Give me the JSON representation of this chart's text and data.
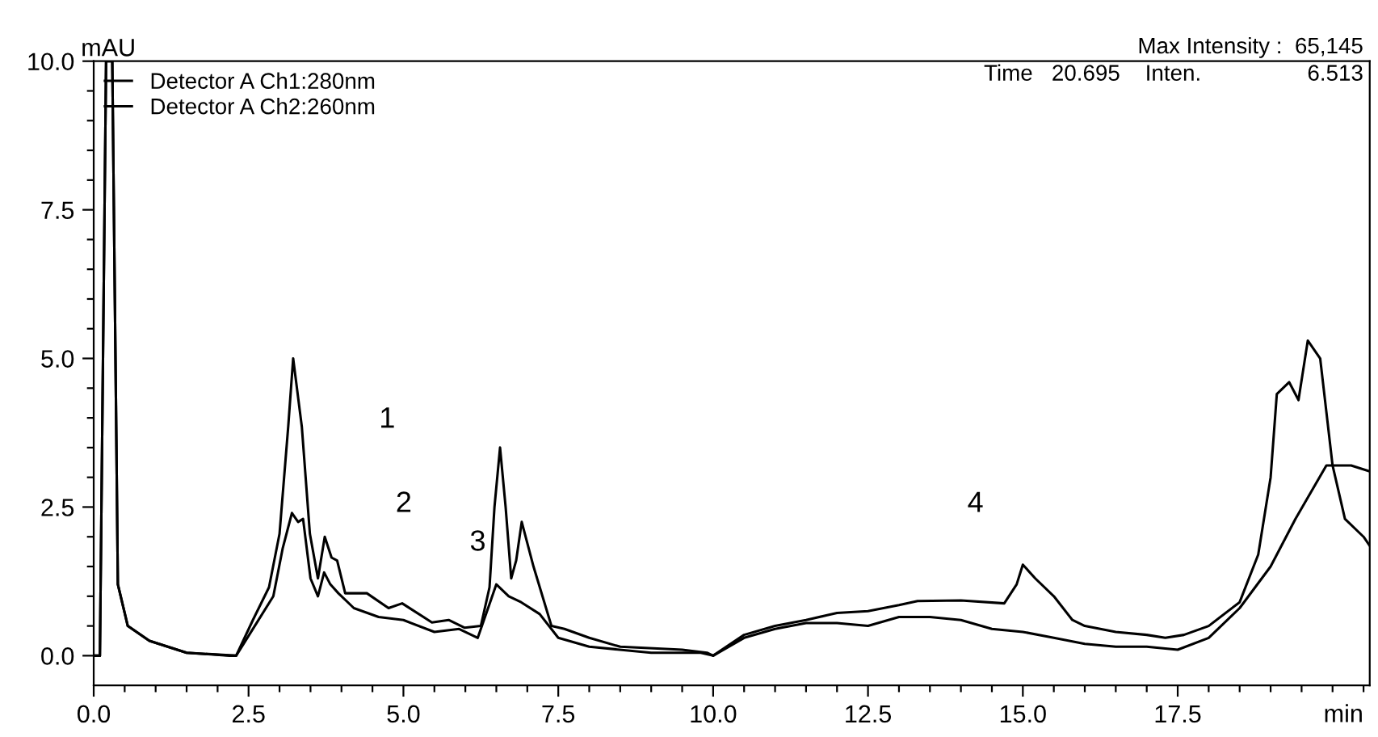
{
  "chart_data": {
    "type": "line",
    "xlabel": "min",
    "ylabel": "mAU",
    "xlim": [
      0,
      20.6
    ],
    "ylim": [
      -0.5,
      10.0
    ],
    "xticks": [
      {
        "value": 0,
        "label": "0.0"
      },
      {
        "value": 0.5,
        "label": null
      },
      {
        "value": 1,
        "label": null
      },
      {
        "value": 1.5,
        "label": null
      },
      {
        "value": 2,
        "label": null
      },
      {
        "value": 2.5,
        "label": "2.5"
      },
      {
        "value": 3,
        "label": null
      },
      {
        "value": 3.5,
        "label": null
      },
      {
        "value": 4,
        "label": null
      },
      {
        "value": 4.5,
        "label": null
      },
      {
        "value": 5,
        "label": "5.0"
      },
      {
        "value": 5.5,
        "label": null
      },
      {
        "value": 6,
        "label": null
      },
      {
        "value": 6.5,
        "label": null
      },
      {
        "value": 7,
        "label": null
      },
      {
        "value": 7.5,
        "label": "7.5"
      },
      {
        "value": 8,
        "label": null
      },
      {
        "value": 8.5,
        "label": null
      },
      {
        "value": 9,
        "label": null
      },
      {
        "value": 9.5,
        "label": null
      },
      {
        "value": 10,
        "label": "10.0"
      },
      {
        "value": 10.5,
        "label": null
      },
      {
        "value": 11,
        "label": null
      },
      {
        "value": 11.5,
        "label": null
      },
      {
        "value": 12,
        "label": null
      },
      {
        "value": 12.5,
        "label": "12.5"
      },
      {
        "value": 13,
        "label": null
      },
      {
        "value": 13.5,
        "label": null
      },
      {
        "value": 14,
        "label": null
      },
      {
        "value": 14.5,
        "label": null
      },
      {
        "value": 15,
        "label": "15.0"
      },
      {
        "value": 15.5,
        "label": null
      },
      {
        "value": 16,
        "label": null
      },
      {
        "value": 16.5,
        "label": null
      },
      {
        "value": 17,
        "label": null
      },
      {
        "value": 17.5,
        "label": "17.5"
      },
      {
        "value": 18,
        "label": null
      },
      {
        "value": 18.5,
        "label": null
      },
      {
        "value": 19,
        "label": null
      },
      {
        "value": 19.5,
        "label": null
      },
      {
        "value": 20,
        "label": null
      },
      {
        "value": 20.5,
        "label": null
      }
    ],
    "yticks": [
      {
        "value": 0,
        "label": "0.0"
      },
      {
        "value": 0.5,
        "label": null
      },
      {
        "value": 1,
        "label": null
      },
      {
        "value": 1.5,
        "label": null
      },
      {
        "value": 2,
        "label": null
      },
      {
        "value": 2.5,
        "label": "2.5"
      },
      {
        "value": 3,
        "label": null
      },
      {
        "value": 3.5,
        "label": null
      },
      {
        "value": 4,
        "label": null
      },
      {
        "value": 4.5,
        "label": null
      },
      {
        "value": 5,
        "label": "5.0"
      },
      {
        "value": 5.5,
        "label": null
      },
      {
        "value": 6,
        "label": null
      },
      {
        "value": 6.5,
        "label": null
      },
      {
        "value": 7,
        "label": null
      },
      {
        "value": 7.5,
        "label": "7.5"
      },
      {
        "value": 8,
        "label": null
      },
      {
        "value": 8.5,
        "label": null
      },
      {
        "value": 9,
        "label": null
      },
      {
        "value": 9.5,
        "label": null
      },
      {
        "value": 10,
        "label": "10.0"
      }
    ],
    "grid": false,
    "legend": "top left",
    "marker": "none",
    "line_style": "solid",
    "series": [
      {
        "name": "Detector A Ch1:280nm",
        "color": "#000000",
        "x": [
          0,
          0.1,
          0.15,
          0.2,
          0.3,
          0.36,
          0.39,
          0.55,
          0.9,
          1.5,
          2.2,
          2.3,
          2.57,
          2.83,
          3.0,
          3.14,
          3.22,
          3.36,
          3.49,
          3.62,
          3.73,
          3.84,
          3.93,
          4.06,
          4.41,
          4.76,
          4.98,
          5.46,
          5.73,
          5.99,
          6.25,
          6.39,
          6.47,
          6.56,
          6.65,
          6.74,
          6.82,
          6.91,
          7.1,
          7.39,
          7.6,
          8.0,
          8.5,
          9.5,
          9.9,
          10.0,
          10.5,
          11.0,
          11.5,
          12.0,
          12.5,
          13.0,
          13.3,
          14.0,
          14.7,
          14.9,
          15.0,
          15.2,
          15.5,
          15.8,
          16.0,
          16.5,
          17.0,
          17.3,
          17.6,
          18.0,
          18.5,
          18.8,
          19.0,
          19.1,
          19.3,
          19.45,
          19.6,
          19.8,
          20.0,
          20.2,
          20.5,
          20.6
        ],
        "values": [
          0,
          0,
          5.0,
          10.0,
          10.0,
          4.2,
          1.2,
          0.5,
          0.25,
          0.05,
          0,
          0,
          0.6,
          1.15,
          2.05,
          3.85,
          5.0,
          3.85,
          2.05,
          1.3,
          2.0,
          1.65,
          1.6,
          1.05,
          1.05,
          0.8,
          0.88,
          0.56,
          0.6,
          0.47,
          0.5,
          1.15,
          2.5,
          3.5,
          2.5,
          1.3,
          1.6,
          2.25,
          1.5,
          0.5,
          0.45,
          0.3,
          0.15,
          0.1,
          0.05,
          0,
          0.35,
          0.5,
          0.6,
          0.72,
          0.75,
          0.85,
          0.92,
          0.93,
          0.88,
          1.2,
          1.53,
          1.3,
          1.0,
          0.6,
          0.5,
          0.4,
          0.35,
          0.3,
          0.35,
          0.5,
          0.9,
          1.7,
          3.0,
          4.4,
          4.6,
          4.3,
          5.3,
          5.0,
          3.2,
          2.3,
          2.0,
          1.85
        ]
      },
      {
        "name": "Detector A Ch2:260nm",
        "color": "#000000",
        "x": [
          0,
          0.1,
          0.15,
          0.2,
          0.3,
          0.36,
          0.39,
          0.55,
          0.9,
          1.5,
          2.3,
          2.6,
          2.9,
          3.05,
          3.2,
          3.3,
          3.38,
          3.5,
          3.62,
          3.72,
          3.82,
          3.95,
          4.2,
          4.6,
          5.0,
          5.5,
          5.9,
          6.2,
          6.4,
          6.5,
          6.7,
          6.9,
          7.2,
          7.5,
          8.0,
          9.0,
          9.8,
          10.0,
          10.5,
          11.0,
          11.5,
          12.0,
          12.5,
          13.0,
          13.5,
          14.0,
          14.5,
          15.0,
          15.5,
          16.0,
          16.5,
          17.0,
          17.5,
          18.0,
          18.5,
          19.0,
          19.4,
          19.9,
          20.3,
          20.6
        ],
        "values": [
          0,
          0,
          5.0,
          10.0,
          10.0,
          4.2,
          1.2,
          0.5,
          0.25,
          0.05,
          0,
          0.5,
          1.0,
          1.8,
          2.4,
          2.25,
          2.3,
          1.3,
          1.0,
          1.4,
          1.2,
          1.05,
          0.8,
          0.65,
          0.6,
          0.4,
          0.45,
          0.3,
          0.9,
          1.2,
          1.0,
          0.9,
          0.7,
          0.3,
          0.15,
          0.05,
          0.05,
          0,
          0.3,
          0.45,
          0.55,
          0.55,
          0.5,
          0.65,
          0.65,
          0.6,
          0.45,
          0.4,
          0.3,
          0.2,
          0.15,
          0.15,
          0.1,
          0.3,
          0.8,
          1.5,
          2.3,
          3.2,
          3.2,
          3.1
        ]
      }
    ],
    "annotations": [
      "Max Intensity :  65,145",
      "Time   20.695    Inten.                 6.513",
      "1",
      "2",
      "3",
      "4"
    ]
  }
}
